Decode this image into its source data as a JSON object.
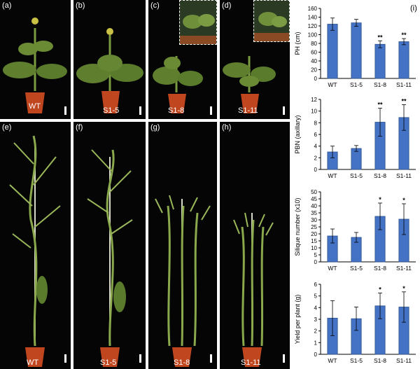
{
  "panels": [
    {
      "letter": "(a)",
      "label": "WT"
    },
    {
      "letter": "(b)",
      "label": "S1-5"
    },
    {
      "letter": "(c)",
      "label": "S1-8"
    },
    {
      "letter": "(d)",
      "label": "S1-11"
    },
    {
      "letter": "(e)",
      "label": "WT"
    },
    {
      "letter": "(f)",
      "label": "S1-5"
    },
    {
      "letter": "(g)",
      "label": "S1-8"
    },
    {
      "letter": "(h)",
      "label": "S1-11"
    }
  ],
  "chart_panel_letter": "(i)",
  "colors": {
    "bar": "#4472c4",
    "bar_edge": "#2f528f",
    "background_photo": "#050505",
    "plant": "#6f8f3a",
    "pot": "#c0461f"
  },
  "chart_data": [
    {
      "type": "bar",
      "categories": [
        "WT",
        "S1-5",
        "S1-8",
        "S1-11"
      ],
      "values": [
        124,
        127,
        78,
        84
      ],
      "errors": [
        14,
        8,
        8,
        7
      ],
      "significance": [
        "",
        "",
        "**",
        "**"
      ],
      "ylabel": "PH (cm)",
      "ylim": [
        0,
        160
      ],
      "yticks": [
        0,
        20,
        40,
        60,
        80,
        100,
        120,
        140,
        160
      ]
    },
    {
      "type": "bar",
      "categories": [
        "WT",
        "S1-5",
        "S1-8",
        "S1-11"
      ],
      "values": [
        3,
        3.6,
        8.1,
        8.9
      ],
      "errors": [
        1,
        0.5,
        2.4,
        2.2
      ],
      "significance": [
        "",
        "",
        "**",
        "**"
      ],
      "ylabel": "PBN (axillary)",
      "ylim": [
        0,
        12
      ],
      "yticks": [
        0,
        2,
        4,
        6,
        8,
        10,
        12
      ]
    },
    {
      "type": "bar",
      "categories": [
        "WT",
        "S1-5",
        "S1-8",
        "S1-11"
      ],
      "values": [
        18.5,
        17.5,
        32.5,
        30.5
      ],
      "errors": [
        5,
        3.5,
        9.5,
        11
      ],
      "significance": [
        "",
        "",
        "*",
        "*"
      ],
      "ylabel": "Silique number (x10)",
      "ylim": [
        0,
        50
      ],
      "yticks": [
        0,
        5,
        10,
        15,
        20,
        25,
        30,
        35,
        40,
        45,
        50
      ]
    },
    {
      "type": "bar",
      "categories": [
        "WT",
        "S1-5",
        "S1-8",
        "S1-11"
      ],
      "values": [
        3.1,
        3.05,
        4.15,
        4.05
      ],
      "errors": [
        1.5,
        1,
        1.1,
        1.3
      ],
      "significance": [
        "",
        "",
        "*",
        "*"
      ],
      "ylabel": "Yield per plant (g)",
      "ylim": [
        0,
        6
      ],
      "yticks": [
        0,
        1,
        2,
        3,
        4,
        5,
        6
      ]
    }
  ]
}
